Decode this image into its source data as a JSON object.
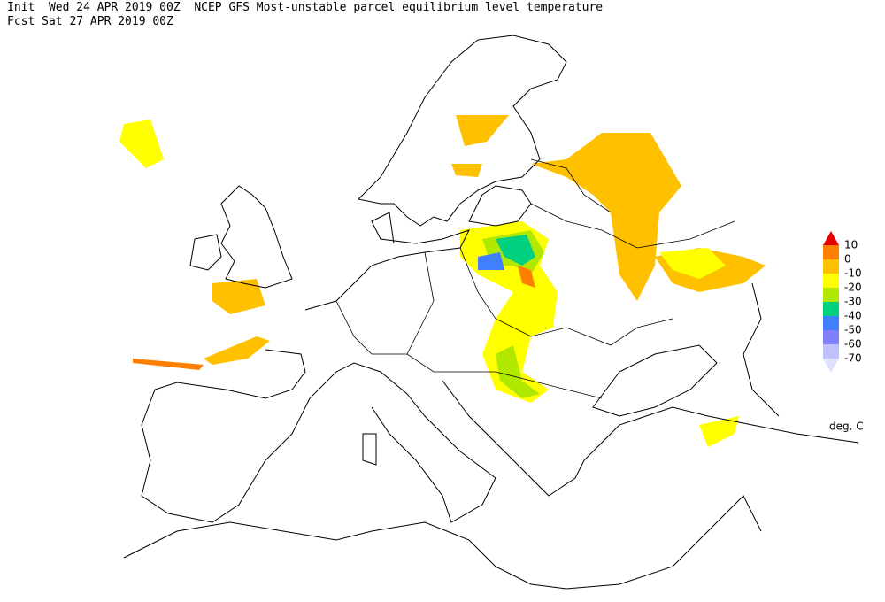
{
  "header": {
    "line1": "Init  Wed 24 APR 2019 00Z  NCEP GFS Most-unstable parcel equilibrium level temperature",
    "line2": "Fcst Sat 27 APR 2019 00Z"
  },
  "legend": {
    "levels": [
      10,
      0,
      -10,
      -20,
      -30,
      -40,
      -50,
      -60,
      -70
    ],
    "colors": [
      "#e80000",
      "#ff8000",
      "#ffc000",
      "#ffff00",
      "#b0e800",
      "#00d080",
      "#4080ff",
      "#8080ff",
      "#c0c0ff",
      "#e0e0ff"
    ],
    "unit": "deg. C"
  }
}
